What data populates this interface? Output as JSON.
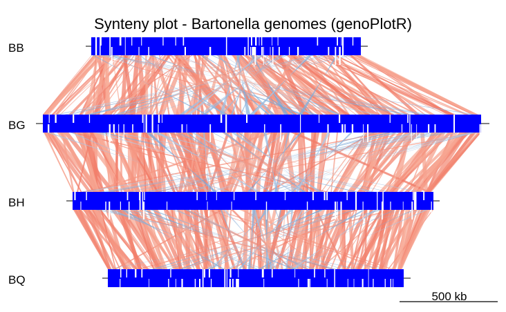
{
  "title": "Synteny plot - Bartonella genomes (genoPlotR)",
  "scale": {
    "label": "500 kb"
  },
  "colors": {
    "genes": "#0000ff",
    "direct": "#f4694f",
    "reverse": "#5fa0d8",
    "axis": "#000000"
  },
  "genomes": [
    {
      "name": "BB"
    },
    {
      "name": "BG"
    },
    {
      "name": "BH"
    },
    {
      "name": "BQ"
    }
  ]
}
